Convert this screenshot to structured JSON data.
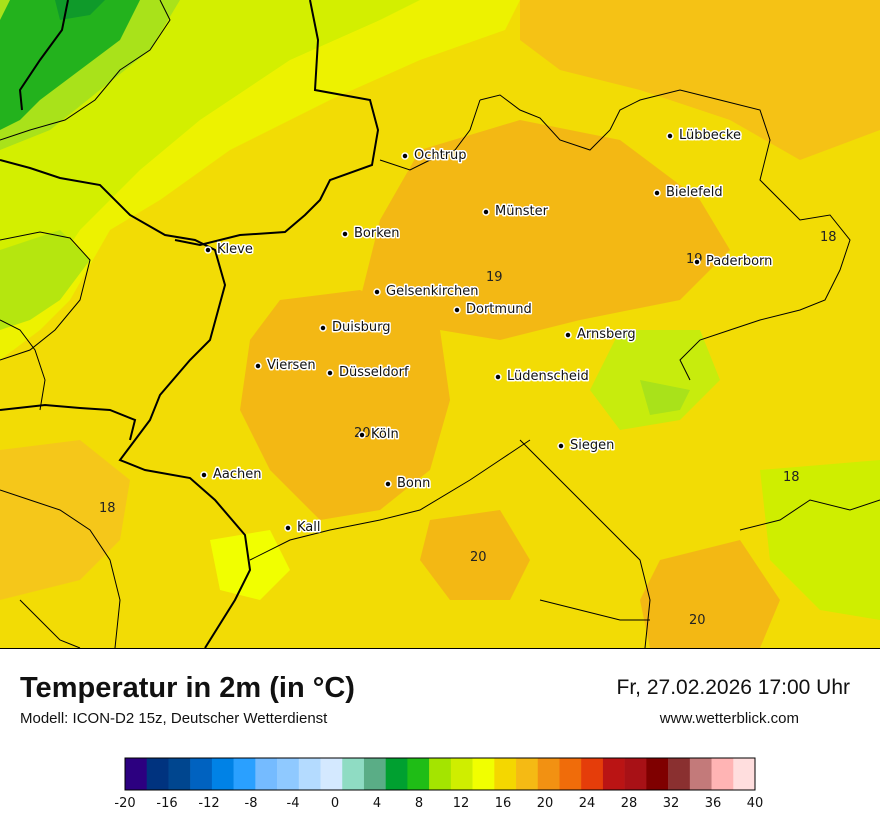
{
  "header": {
    "title": "Temperatur in 2m (in °C)",
    "model": "Modell: ICON-D2 15z, Deutscher Wetterdienst",
    "datetime": "Fr, 27.02.2026 17:00 Uhr",
    "website": "www.wetterblick.com"
  },
  "cities": [
    {
      "name": "Lübbecke"
    },
    {
      "name": "Ochtrup"
    },
    {
      "name": "Bielefeld"
    },
    {
      "name": "Münster"
    },
    {
      "name": "Borken"
    },
    {
      "name": "Kleve"
    },
    {
      "name": "Paderborn"
    },
    {
      "name": "Gelsenkirchen"
    },
    {
      "name": "Dortmund"
    },
    {
      "name": "Duisburg"
    },
    {
      "name": "Arnsberg"
    },
    {
      "name": "Viersen"
    },
    {
      "name": "Düsseldorf"
    },
    {
      "name": "Lüdenscheid"
    },
    {
      "name": "Köln"
    },
    {
      "name": "Siegen"
    },
    {
      "name": "Aachen"
    },
    {
      "name": "Bonn"
    },
    {
      "name": "Kall"
    }
  ],
  "isotherm_labels": [
    "19",
    "19",
    "18",
    "20",
    "18",
    "18",
    "20",
    "20"
  ],
  "legend": {
    "ticks": [
      "-20",
      "-16",
      "-12",
      "-8",
      "-4",
      "0",
      "4",
      "8",
      "12",
      "16",
      "20",
      "24",
      "28",
      "32",
      "36",
      "40"
    ],
    "colors": [
      "#2c0080",
      "#00337f",
      "#00468f",
      "#0062c0",
      "#0082e6",
      "#2aa0ff",
      "#75bbff",
      "#8fc9ff",
      "#b4dbff",
      "#d4e9ff",
      "#8fdcc3",
      "#5aad86",
      "#00a030",
      "#1fbd16",
      "#a4e400",
      "#cfee00",
      "#f1ff00",
      "#f4d700",
      "#f5ba14",
      "#f29112",
      "#f06c0a",
      "#e53d0a",
      "#ba1414",
      "#a81116",
      "#7f0000",
      "#8a3030",
      "#c37a7a",
      "#ffb4b4",
      "#ffdede"
    ]
  }
}
